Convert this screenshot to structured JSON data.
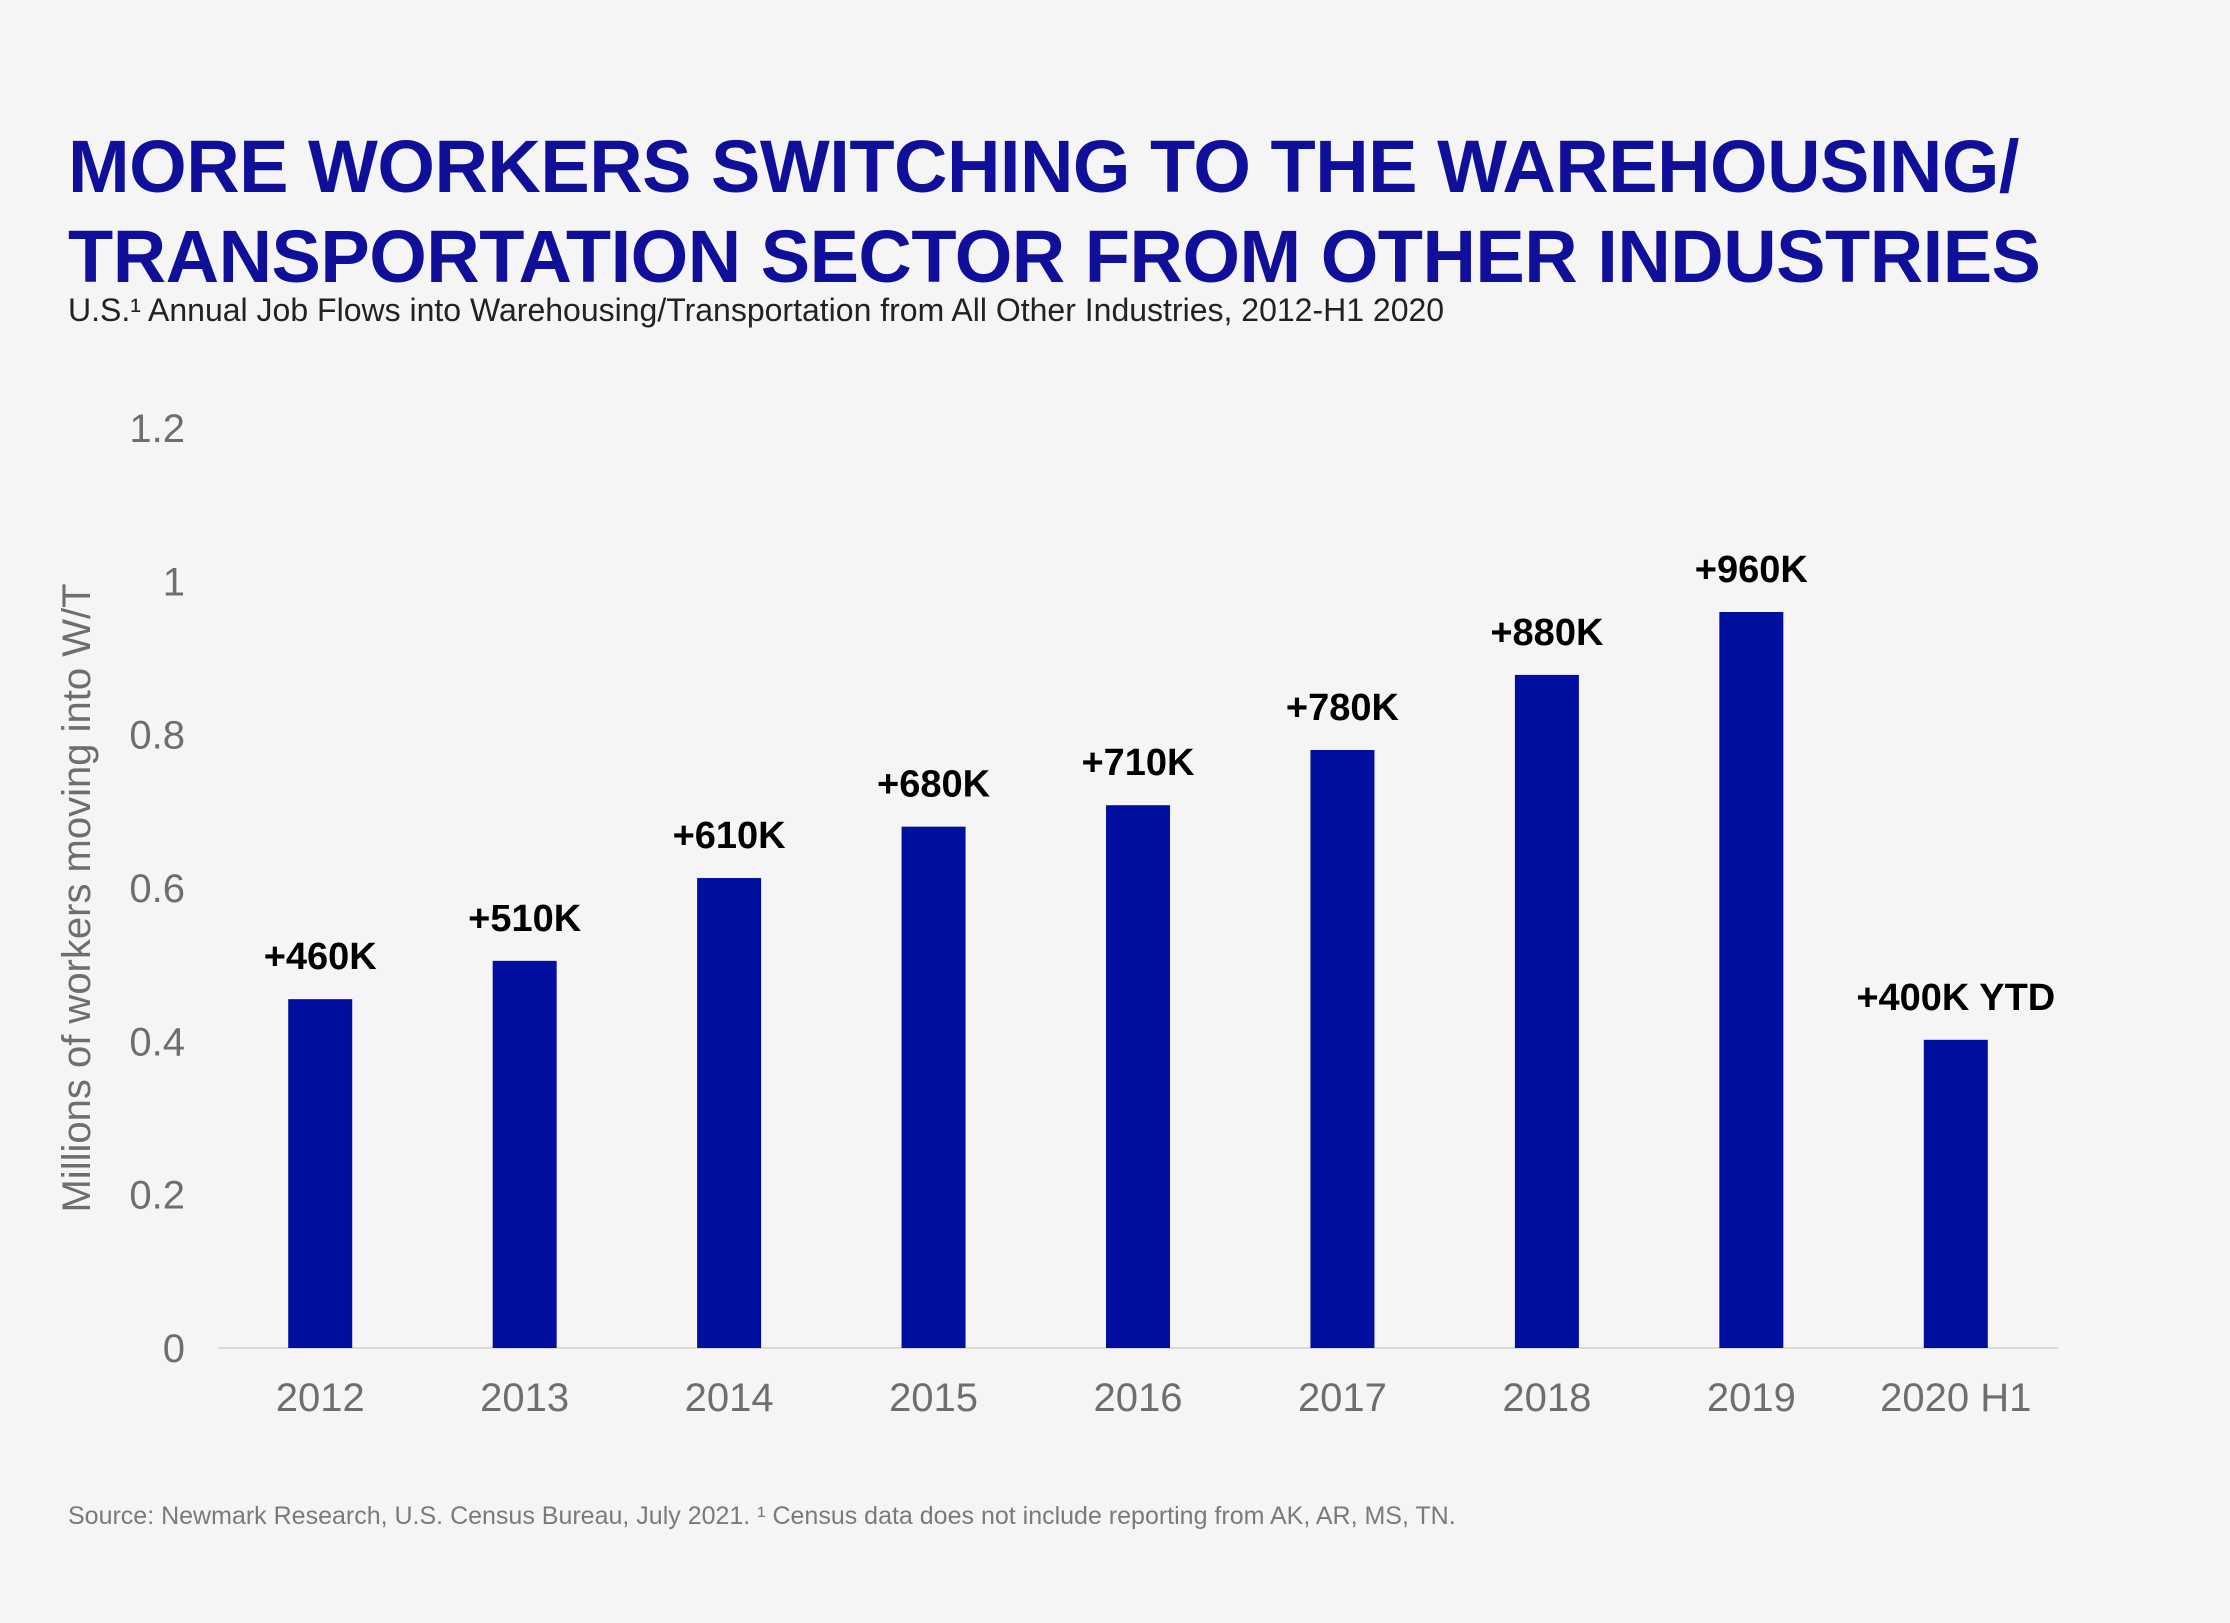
{
  "title": {
    "line1": "MORE WORKERS SWITCHING TO THE WAREHOUSING/",
    "line2": "TRANSPORTATION SECTOR FROM OTHER INDUSTRIES"
  },
  "subtitle": "U.S.¹ Annual Job Flows into Warehousing/Transportation from All Other Industries, 2012-H1 2020",
  "source": "Source: Newmark Research, U.S. Census Bureau, July 2021. ¹ Census data does not include reporting from AK, AR, MS, TN.",
  "colors": {
    "bar": "#000f9f",
    "title": "#0f0f9a",
    "axis": "#d9d9d9"
  },
  "chart_data": {
    "type": "bar",
    "categories": [
      "2012",
      "2013",
      "2014",
      "2015",
      "2016",
      "2017",
      "2018",
      "2019",
      "2020 H1"
    ],
    "values": [
      0.455,
      0.505,
      0.613,
      0.68,
      0.708,
      0.78,
      0.878,
      0.96,
      0.402
    ],
    "data_labels": [
      "+460K",
      "+510K",
      "+610K",
      "+680K",
      "+710K",
      "+780K",
      "+880K",
      "+960K",
      "+400K YTD"
    ],
    "yticks": [
      "0",
      "0.2",
      "0.4",
      "0.6",
      "0.8",
      "1",
      "1.2"
    ],
    "ylabel": "Millions of workers moving into W/T",
    "xlabel": "",
    "ylim": [
      0,
      1.2
    ],
    "grid": false,
    "legend": "none"
  }
}
